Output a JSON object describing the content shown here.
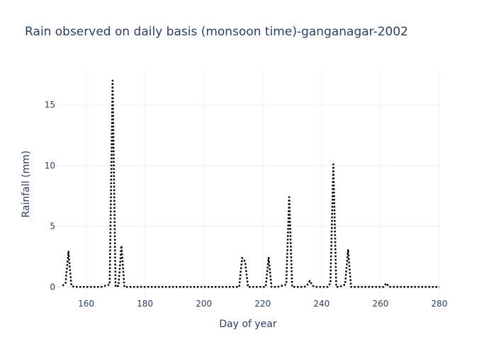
{
  "chart_data": {
    "type": "line",
    "title": "Rain observed on daily basis (monsoon time)-ganganagar-2002",
    "xlabel": "Day of year",
    "ylabel": "Rainfall (mm)",
    "xlim": [
      150,
      280
    ],
    "ylim": [
      -0.8,
      17.8
    ],
    "xticks": [
      160,
      180,
      200,
      220,
      240,
      260,
      280
    ],
    "yticks": [
      0,
      5,
      10,
      15
    ],
    "grid": true,
    "legend": "none",
    "line_color": "#000000",
    "line_style": "dotted",
    "series": [
      {
        "x": [
          152,
          153,
          154,
          155,
          156,
          160,
          165,
          168,
          169,
          170,
          171,
          172,
          173,
          175,
          180,
          190,
          200,
          205,
          210,
          212,
          213,
          214,
          215,
          220,
          221,
          222,
          223,
          225,
          228,
          229,
          230,
          232,
          234,
          235,
          236,
          237,
          238,
          240,
          242,
          243,
          244,
          245,
          246,
          248,
          249,
          250,
          252,
          255,
          260,
          261,
          262,
          263,
          265,
          270,
          275,
          280
        ],
        "y": [
          0.1,
          0.3,
          2.9,
          0.1,
          0,
          0,
          0,
          0.2,
          17.0,
          0,
          0.1,
          3.4,
          0,
          0,
          0,
          0,
          0,
          0,
          0,
          0,
          2.4,
          2.1,
          0,
          0,
          0,
          2.4,
          0,
          0,
          0.2,
          7.4,
          0,
          0,
          0,
          0.1,
          0.5,
          0.1,
          0,
          0,
          0,
          0.3,
          10.1,
          0,
          0,
          0.2,
          3.1,
          0,
          0,
          0,
          0,
          0,
          0.3,
          0,
          0,
          0,
          0,
          0
        ]
      }
    ]
  }
}
